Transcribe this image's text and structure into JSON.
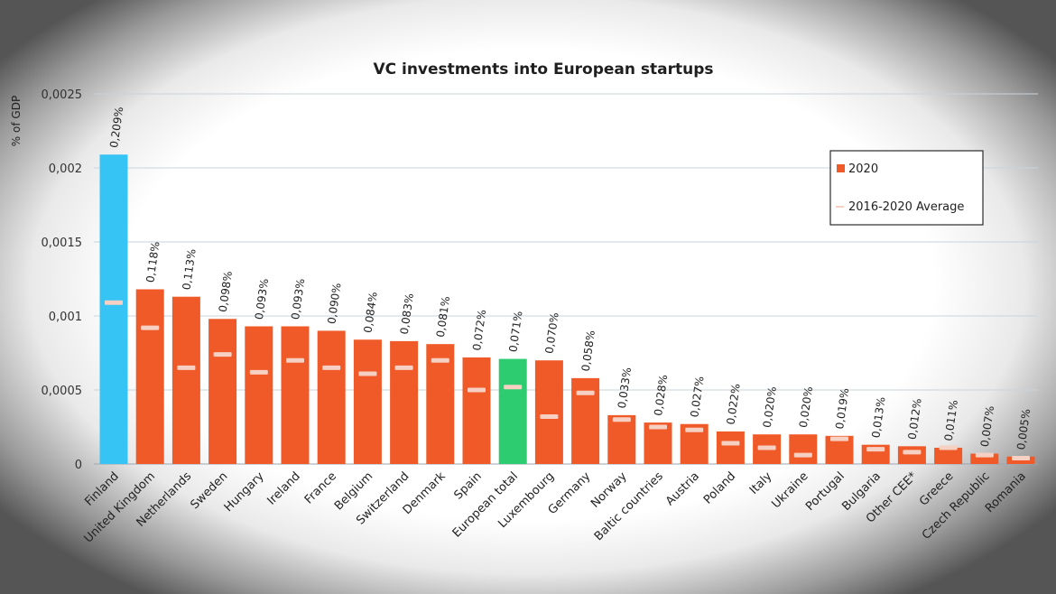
{
  "chart_data": {
    "type": "bar",
    "title": "VC investments into European startups",
    "ylabel": "% of GDP",
    "xlabel": "",
    "ylim": [
      0,
      0.0025
    ],
    "yticks": [
      "0",
      "0,0005",
      "0,001",
      "0,0015",
      "0,002",
      "0,0025"
    ],
    "grid": true,
    "legend_position": "top-right",
    "categories": [
      "Finland",
      "United Kingdom",
      "Netherlands",
      "Sweden",
      "Hungary",
      "Ireland",
      "France",
      "Belgium",
      "Switzerland",
      "Denmark",
      "Spain",
      "European total",
      "Luxembourg",
      "Germany",
      "Norway",
      "Baltic countries",
      "Austria",
      "Poland",
      "Italy",
      "Ukraine",
      "Portugal",
      "Bulgaria",
      "Other CEE*",
      "Greece",
      "Czech Republic",
      "Romania"
    ],
    "series": [
      {
        "name": "2020",
        "values": [
          0.00209,
          0.00118,
          0.00113,
          0.00098,
          0.00093,
          0.00093,
          0.0009,
          0.00084,
          0.00083,
          0.00081,
          0.00072,
          0.00071,
          0.0007,
          0.00058,
          0.00033,
          0.00028,
          0.00027,
          0.00022,
          0.0002,
          0.0002,
          0.00019,
          0.00013,
          0.00012,
          0.00011,
          7e-05,
          5e-05
        ],
        "data_labels": [
          "0,209%",
          "0,118%",
          "0,113%",
          "0,098%",
          "0,093%",
          "0,093%",
          "0,090%",
          "0,084%",
          "0,083%",
          "0,081%",
          "0,072%",
          "0,071%",
          "0,070%",
          "0,058%",
          "0,033%",
          "0,028%",
          "0,027%",
          "0,022%",
          "0,020%",
          "0,020%",
          "0,019%",
          "0,013%",
          "0,012%",
          "0,011%",
          "0,007%",
          "0,005%"
        ]
      },
      {
        "name": "2016-2020 Average",
        "values": [
          0.00109,
          0.00092,
          0.00065,
          0.00074,
          0.00062,
          0.0007,
          0.00065,
          0.00061,
          0.00065,
          0.0007,
          0.0005,
          0.00052,
          0.00032,
          0.00048,
          0.0003,
          0.00025,
          0.00023,
          0.00014,
          0.00011,
          6e-05,
          0.00017,
          0.0001,
          8e-05,
          0.00011,
          6e-05,
          4e-05
        ]
      }
    ],
    "colors": {
      "default_bar": "#f05a28",
      "highlight_bar": "#36c4f4",
      "total_bar": "#2ecc71",
      "average_marker": "#f6d0c2",
      "gridline": "#c9d3dc",
      "axis": "#9aa6b2"
    },
    "highlight": {
      "Finland": "highlight_bar",
      "European total": "total_bar"
    }
  }
}
